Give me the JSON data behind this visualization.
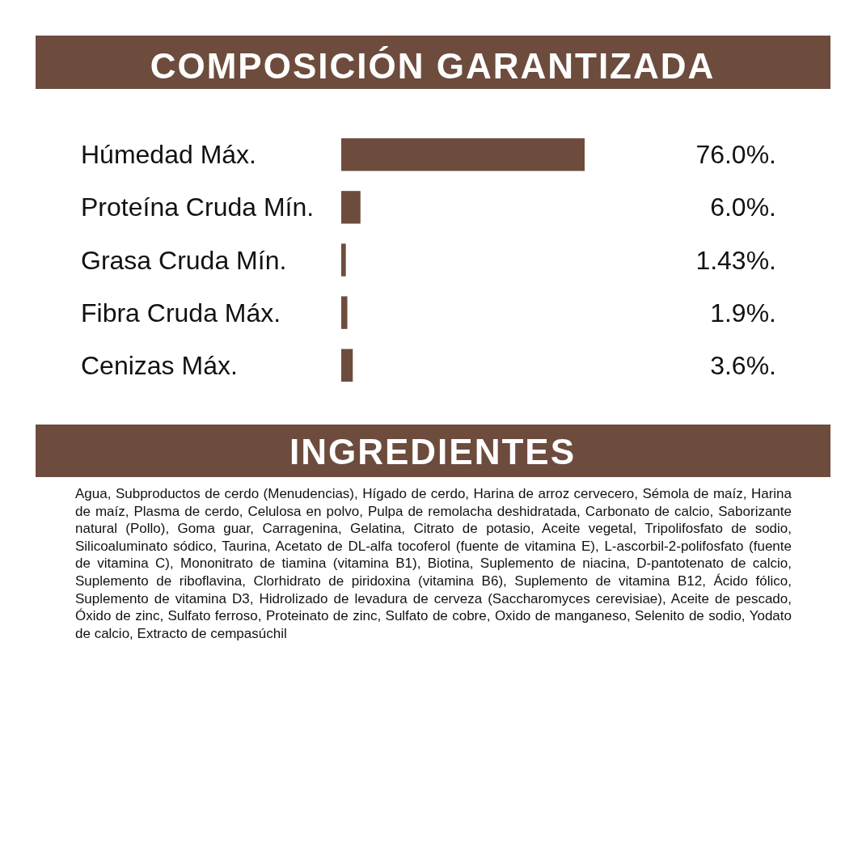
{
  "chart_data": {
    "type": "bar",
    "orientation": "horizontal",
    "title": "COMPOSICIÓN GARANTIZADA",
    "categories": [
      "Húmedad Máx.",
      "Proteína Cruda Mín.",
      "Grasa Cruda Mín.",
      "Fibra Cruda Máx.",
      "Cenizas Máx."
    ],
    "values": [
      76.0,
      6.0,
      1.43,
      1.9,
      3.6
    ],
    "value_labels": [
      "76.0%.",
      "6.0%.",
      "1.43%.",
      "1.9%.",
      "3.6%."
    ],
    "color": "#6d4c3d",
    "annotations": [
      "INGREDIENTES",
      "Agua, Subproductos de cerdo (Menudencias), Hígado de cerdo, Harina de arroz cervecero, Sémola de maíz, Harina de maíz, Plasma de cerdo, Celulosa en polvo, Pulpa de remolacha deshidratada, Carbonato de calcio, Saborizante natural (Pollo), Goma guar, Carragenina, Gelatina, Citrato de potasio, Aceite vegetal, Tripolifosfato de sodio, Silicoaluminato sódico, Taurina, Acetato de DL-alfa tocoferol (fuente de vitamina E), L-ascorbil-2-polifosfato (fuente de vitamina C), Mononitrato de tiamina (vitamina B1), Biotina, Suplemento de niacina, D-pantotenato de calcio, Suplemento de riboflavina, Clorhidrato de piridoxina (vitamina B6), Suplemento de vitamina B12, Ácido fólico, Suplemento de vitamina D3, Hidrolizado de levadura de cerveza (Saccharomyces cerevisiae), Aceite de pescado, Óxido de zinc, Sulfato ferroso, Proteinato de zinc, Sulfato de cobre, Oxido de manganeso, Selenito de sodio, Yodato de calcio, Extracto de cempasúchil"
    ]
  }
}
